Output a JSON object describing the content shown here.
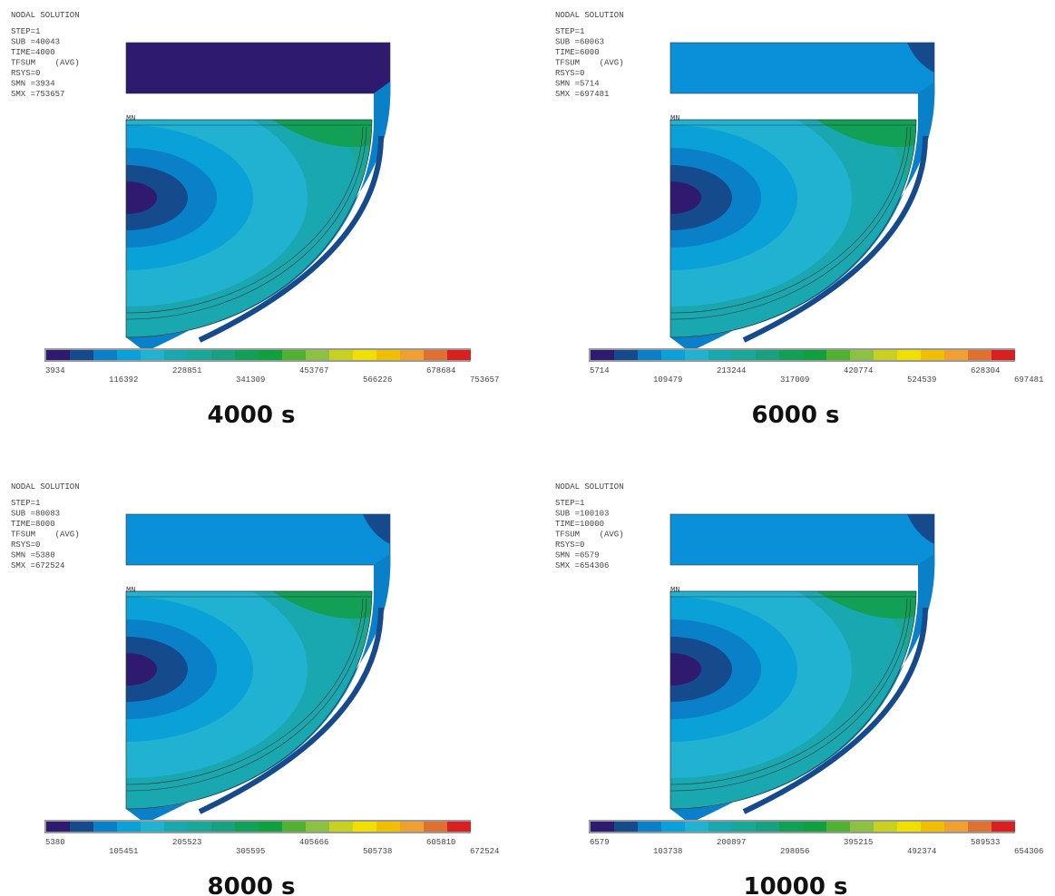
{
  "panels": [
    {
      "header": "NODAL SOLUTION",
      "lines": [
        "STEP=1",
        "SUB =40043",
        "TIME=4000",
        "TFSUM    (AVG)",
        "RSYS=0",
        "SMN =3934",
        "SMX =753657"
      ],
      "mn": "MN",
      "legend": [
        "3934",
        "116392",
        "228851",
        "341309",
        "453767",
        "566226",
        "678684",
        "753657"
      ],
      "caption": "4000 s"
    },
    {
      "header": "NODAL SOLUTION",
      "lines": [
        "STEP=1",
        "SUB =60063",
        "TIME=6000",
        "TFSUM    (AVG)",
        "RSYS=0",
        "SMN =5714",
        "SMX =697481"
      ],
      "mn": "MN",
      "legend": [
        "5714",
        "109479",
        "213244",
        "317009",
        "420774",
        "524539",
        "628304",
        "697481"
      ],
      "caption": "6000 s"
    },
    {
      "header": "NODAL SOLUTION",
      "lines": [
        "STEP=1",
        "SUB =80083",
        "TIME=8000",
        "TFSUM    (AVG)",
        "RSYS=0",
        "SMN =5380",
        "SMX =672524"
      ],
      "mn": "MN",
      "legend": [
        "5380",
        "105451",
        "205523",
        "305595",
        "405666",
        "505738",
        "605810",
        "672524"
      ],
      "caption": "8000 s"
    },
    {
      "header": "NODAL SOLUTION",
      "lines": [
        "STEP=1",
        "SUB =100103",
        "TIME=10000",
        "TFSUM    (AVG)",
        "RSYS=0",
        "SMN =6579",
        "SMX =654306"
      ],
      "mn": "MN",
      "legend": [
        "6579",
        "103738",
        "200897",
        "298056",
        "395215",
        "492374",
        "589533",
        "654306"
      ],
      "caption": "10000 s"
    }
  ]
}
